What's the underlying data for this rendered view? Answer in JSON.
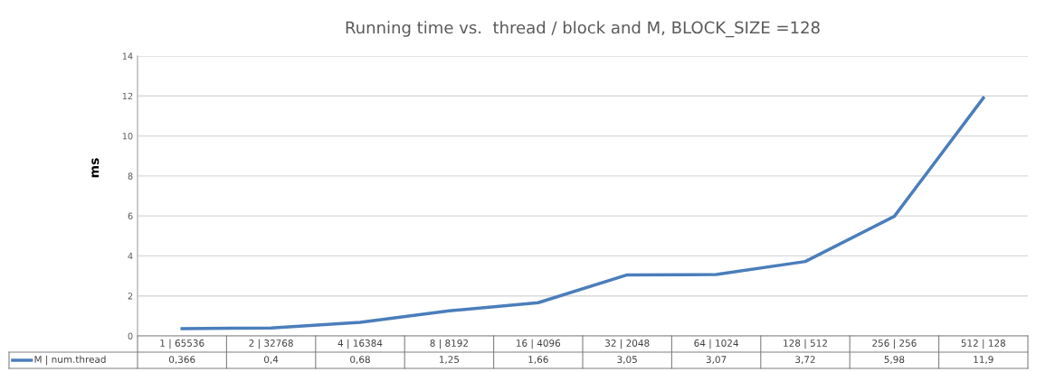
{
  "chart_data": {
    "type": "line",
    "title": "Running time vs.  thread / block and M, BLOCK_SIZE =128",
    "ylabel": "ms",
    "categories": [
      "1 | 65536",
      "2 | 32768",
      "4 | 16384",
      "8 | 8192",
      "16 | 4096",
      "32 | 2048",
      "64 | 1024",
      "128 | 512",
      "256 | 256",
      "512 | 128"
    ],
    "series": [
      {
        "name": "M | num.thread",
        "color": "#4a7ebb",
        "values": [
          0.366,
          0.4,
          0.68,
          1.25,
          1.66,
          3.05,
          3.07,
          3.72,
          5.98,
          11.9
        ],
        "value_labels": [
          "0,366",
          "0,4",
          "0,68",
          "1,25",
          "1,66",
          "3,05",
          "3,07",
          "3,72",
          "5,98",
          "11,9"
        ]
      }
    ],
    "ylim": [
      0,
      14
    ],
    "yticks": [
      0,
      2,
      4,
      6,
      8,
      10,
      12,
      14
    ],
    "grid": "y",
    "legend": "bottom",
    "marker": "none",
    "line_style": "solid"
  }
}
